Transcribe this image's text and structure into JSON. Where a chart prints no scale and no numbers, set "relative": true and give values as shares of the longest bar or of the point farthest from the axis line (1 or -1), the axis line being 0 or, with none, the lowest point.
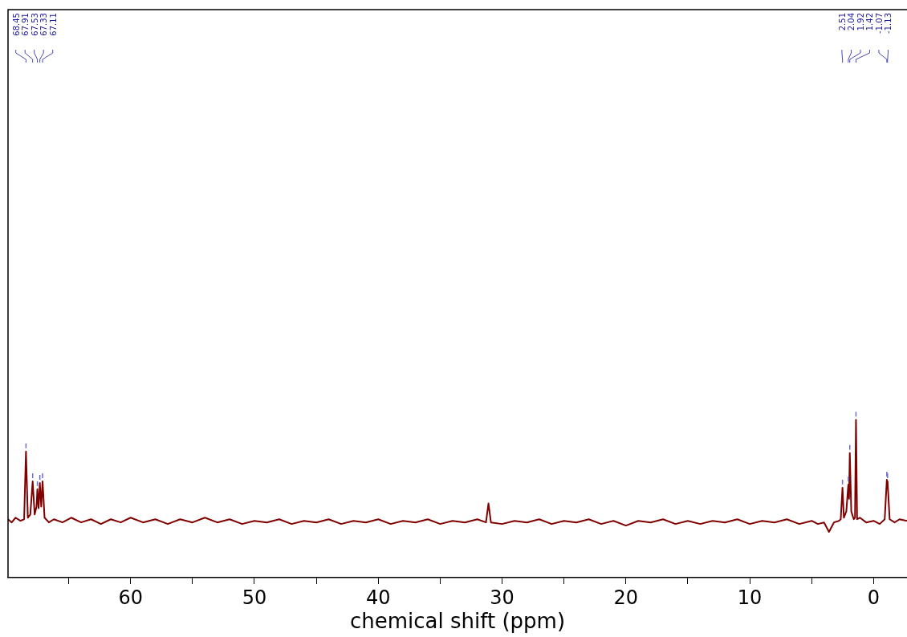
{
  "chart_data": {
    "type": "line",
    "relative": true,
    "xlabel": "chemical shift (ppm)",
    "xlim": [
      69.9,
      -2.7
    ],
    "xticks": [
      {
        "value": 65,
        "label": null
      },
      60,
      {
        "value": 55,
        "label": null
      },
      50,
      {
        "value": 45,
        "label": null
      },
      40,
      {
        "value": 35,
        "label": null
      },
      30,
      {
        "value": 25,
        "label": null
      },
      20,
      {
        "value": 15,
        "label": null
      },
      10,
      {
        "value": 5,
        "label": null
      },
      0
    ],
    "grid": false,
    "legend": false,
    "marker": "none",
    "line_style": "solid",
    "series": [
      {
        "color": "#800000",
        "x": [
          69.9,
          69.6,
          69.3,
          68.9,
          68.6,
          68.45,
          68.3,
          68.1,
          67.91,
          67.75,
          67.6,
          67.53,
          67.43,
          67.33,
          67.22,
          67.11,
          66.95,
          66.6,
          66.2,
          65.5,
          64.8,
          64,
          63.2,
          62.4,
          61.6,
          60.8,
          60,
          59,
          58,
          57,
          56,
          55,
          54,
          53,
          52,
          51,
          50,
          49,
          48,
          47,
          46,
          45,
          44,
          43,
          42,
          41,
          40,
          39,
          38,
          37,
          36,
          35,
          34,
          33,
          32,
          31.3,
          31.1,
          30.9,
          30,
          29,
          28,
          27,
          26,
          25,
          24,
          23,
          22,
          21,
          20,
          19,
          18,
          17,
          16,
          15,
          14,
          13,
          12,
          11,
          10,
          9,
          8,
          7,
          6,
          5,
          4.5,
          4,
          3.6,
          3.2,
          2.8,
          2.65,
          2.51,
          2.4,
          2.2,
          2.04,
          1.98,
          1.92,
          1.8,
          1.6,
          1.5,
          1.42,
          1.33,
          1.1,
          0.6,
          0,
          -0.5,
          -0.9,
          -1.07,
          -1.1,
          -1.13,
          -1.3,
          -1.7,
          -2.1,
          -2.7
        ],
        "values": [
          0.37,
          0.35,
          0.38,
          0.36,
          0.37,
          0.8,
          0.38,
          0.4,
          0.61,
          0.4,
          0.45,
          0.56,
          0.44,
          0.6,
          0.45,
          0.61,
          0.38,
          0.35,
          0.37,
          0.35,
          0.38,
          0.35,
          0.37,
          0.34,
          0.37,
          0.35,
          0.38,
          0.35,
          0.37,
          0.34,
          0.37,
          0.35,
          0.38,
          0.35,
          0.37,
          0.34,
          0.36,
          0.35,
          0.37,
          0.34,
          0.36,
          0.35,
          0.37,
          0.34,
          0.36,
          0.35,
          0.37,
          0.34,
          0.36,
          0.35,
          0.37,
          0.34,
          0.36,
          0.35,
          0.37,
          0.35,
          0.47,
          0.35,
          0.34,
          0.36,
          0.35,
          0.37,
          0.34,
          0.36,
          0.35,
          0.37,
          0.34,
          0.36,
          0.33,
          0.36,
          0.35,
          0.37,
          0.34,
          0.36,
          0.34,
          0.36,
          0.35,
          0.37,
          0.34,
          0.36,
          0.35,
          0.37,
          0.34,
          0.36,
          0.34,
          0.35,
          0.29,
          0.35,
          0.36,
          0.37,
          0.57,
          0.38,
          0.42,
          0.59,
          0.5,
          0.79,
          0.42,
          0.37,
          0.38,
          1,
          0.37,
          0.38,
          0.35,
          0.36,
          0.34,
          0.37,
          0.62,
          0.58,
          0.61,
          0.37,
          0.35,
          0.37,
          0.36
        ]
      }
    ],
    "annotations": [
      "68.45",
      "67.91",
      "67.53",
      "67.33",
      "67.11",
      "2.51",
      "2.04",
      "1.92",
      "1.42",
      "-1.07",
      "-1.13"
    ]
  }
}
